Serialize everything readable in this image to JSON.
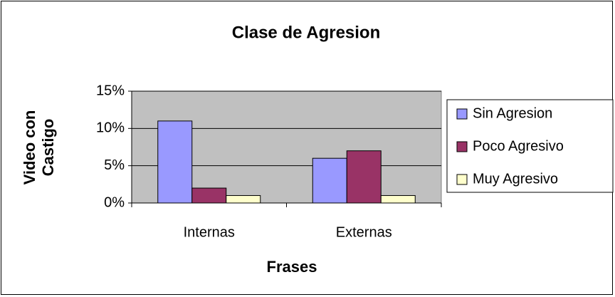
{
  "chart_data": {
    "type": "bar",
    "title": "Clase de Agresion",
    "xlabel": "Frases",
    "ylabel": [
      "Video con",
      "Castigo"
    ],
    "categories": [
      "Internas",
      "Externas"
    ],
    "series": [
      {
        "name": "Sin Agresion",
        "color": "#9999ff",
        "values": [
          11,
          6
        ]
      },
      {
        "name": "Poco Agresivo",
        "color": "#993366",
        "values": [
          2,
          7
        ]
      },
      {
        "name": "Muy Agresivo",
        "color": "#ffffcc",
        "values": [
          1,
          1
        ]
      }
    ],
    "ylim": [
      0,
      15
    ],
    "yticks": [
      {
        "value": 0,
        "label": "0%"
      },
      {
        "value": 5,
        "label": "5%"
      },
      {
        "value": 10,
        "label": "10%"
      },
      {
        "value": 15,
        "label": "15%"
      }
    ],
    "grid": true,
    "legend": "right",
    "plot_background": "#c0c0c0"
  }
}
